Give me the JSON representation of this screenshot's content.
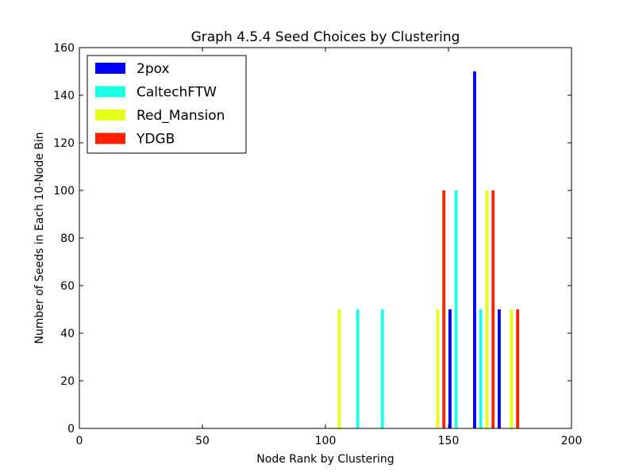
{
  "chart_data": {
    "type": "bar",
    "title": "Graph 4.5.4 Seed Choices by Clustering",
    "xlabel": "Node Rank by Clustering",
    "ylabel": "Number of Seeds in Each 10-Node Bin",
    "xlim": [
      0,
      200
    ],
    "ylim": [
      0,
      160
    ],
    "xticks": [
      "0",
      "50",
      "100",
      "150",
      "200"
    ],
    "yticks": [
      "0",
      "20",
      "40",
      "60",
      "80",
      "100",
      "120",
      "140",
      "160"
    ],
    "grid": false,
    "legend_position": "top-left",
    "bin_width": 10,
    "bins": [
      100,
      110,
      120,
      140,
      150,
      160,
      170
    ],
    "series": [
      {
        "name": "2pox",
        "color": "#0000ff",
        "values": [
          0,
          0,
          0,
          0,
          50,
          150,
          50
        ]
      },
      {
        "name": "CaltechFTW",
        "color": "#1affe6",
        "values": [
          0,
          50,
          50,
          0,
          100,
          50,
          0
        ]
      },
      {
        "name": "Red_Mansion",
        "color": "#e6ff1a",
        "values": [
          50,
          0,
          0,
          50,
          0,
          100,
          50
        ]
      },
      {
        "name": "YDGB",
        "color": "#ff2200",
        "values": [
          0,
          0,
          0,
          100,
          0,
          100,
          50
        ]
      }
    ]
  }
}
